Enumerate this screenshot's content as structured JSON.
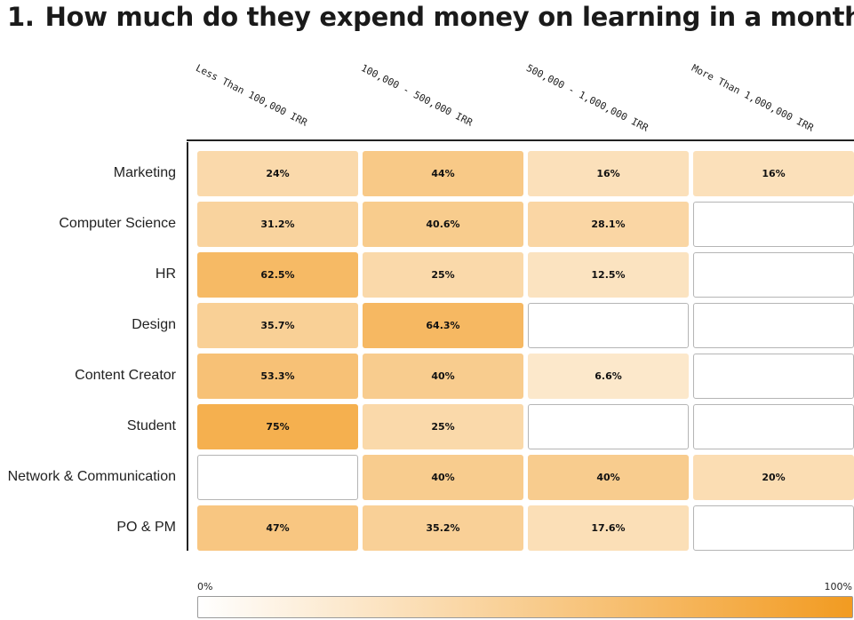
{
  "title": {
    "number": "1.",
    "text": "How much do they expend money on learning in a month?"
  },
  "colors": {
    "scale_low": "#ffffff",
    "scale_high": "#f29b21",
    "empty_border": "#b5b5b5",
    "axis": "#222222"
  },
  "chart_data": {
    "type": "heatmap",
    "title": "How much do they expend money on learning in a month?",
    "columns": [
      "Less Than 100,000 IRR",
      "100,000 - 500,000 IRR",
      "500,000 - 1,000,000 IRR",
      "More Than 1,000,000 IRR"
    ],
    "rows": [
      "Marketing",
      "Computer Science",
      "HR",
      "Design",
      "Content Creator",
      "Student",
      "Network & Communication",
      "PO & PM"
    ],
    "values": [
      [
        24,
        44,
        16,
        16
      ],
      [
        31.2,
        40.6,
        28.1,
        null
      ],
      [
        62.5,
        25,
        12.5,
        null
      ],
      [
        35.7,
        64.3,
        null,
        null
      ],
      [
        53.3,
        40,
        6.6,
        null
      ],
      [
        75,
        25,
        null,
        null
      ],
      [
        null,
        40,
        40,
        20
      ],
      [
        47,
        35.2,
        17.6,
        null
      ]
    ],
    "labels": [
      [
        "24%",
        "44%",
        "16%",
        "16%"
      ],
      [
        "31.2%",
        "40.6%",
        "28.1%",
        ""
      ],
      [
        "62.5%",
        "25%",
        "12.5%",
        ""
      ],
      [
        "35.7%",
        "64.3%",
        "",
        ""
      ],
      [
        "53.3%",
        "40%",
        "6.6%",
        ""
      ],
      [
        "75%",
        "25%",
        "",
        ""
      ],
      [
        "",
        "40%",
        "40%",
        "20%"
      ],
      [
        "47%",
        "35.2%",
        "17.6%",
        ""
      ]
    ],
    "value_range": [
      0,
      100
    ],
    "legend": {
      "min_label": "0%",
      "max_label": "100%",
      "placement": "bottom"
    }
  }
}
